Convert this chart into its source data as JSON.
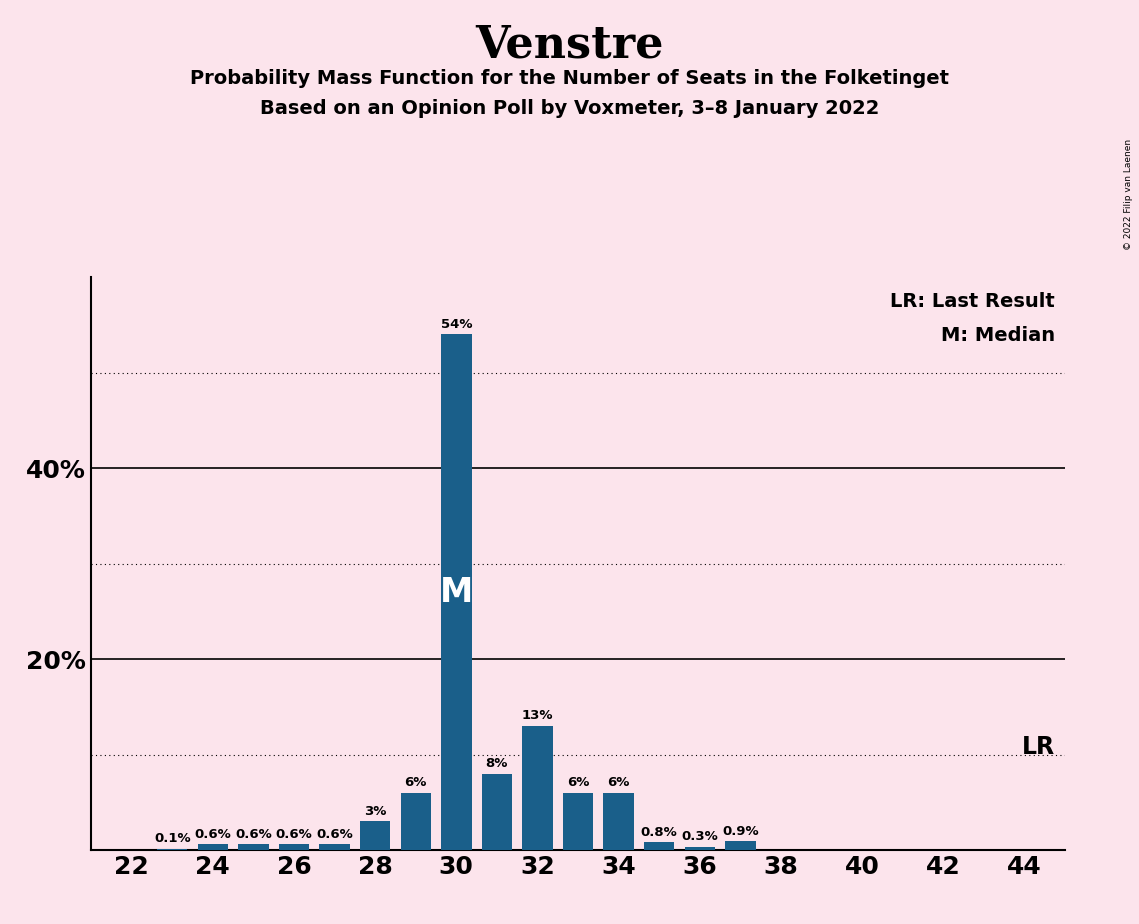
{
  "title": "Venstre",
  "subtitle1": "Probability Mass Function for the Number of Seats in the Folketinget",
  "subtitle2": "Based on an Opinion Poll by Voxmeter, 3–8 January 2022",
  "copyright_text": "© 2022 Filip van Laenen",
  "legend_lr": "LR: Last Result",
  "legend_m": "M: Median",
  "lr_label": "LR",
  "median_label": "M",
  "background_color": "#fce4ec",
  "bar_color": "#1a5f8a",
  "seats": [
    22,
    23,
    24,
    25,
    26,
    27,
    28,
    29,
    30,
    31,
    32,
    33,
    34,
    35,
    36,
    37,
    38,
    39,
    40,
    41,
    42,
    43,
    44
  ],
  "probabilities": [
    0.0,
    0.001,
    0.006,
    0.006,
    0.006,
    0.006,
    0.03,
    0.06,
    0.54,
    0.08,
    0.13,
    0.06,
    0.06,
    0.008,
    0.003,
    0.009,
    0.0,
    0.0,
    0.0,
    0.0,
    0.0,
    0.0,
    0.0
  ],
  "bar_labels": [
    "0%",
    "0.1%",
    "0.6%",
    "0.6%",
    "0.6%",
    "0.6%",
    "3%",
    "6%",
    "54%",
    "8%",
    "13%",
    "6%",
    "6%",
    "0.8%",
    "0.3%",
    "0.9%",
    "0%",
    "0%",
    "0%",
    "0%",
    "0%",
    "0%",
    "0%"
  ],
  "median_seat": 30,
  "lr_seat": 35,
  "xlim": [
    21.0,
    45.0
  ],
  "ylim": [
    0.0,
    0.6
  ],
  "solid_gridlines": [
    0.2,
    0.4
  ],
  "dotted_gridlines": [
    0.1,
    0.3,
    0.5
  ],
  "ytick_labels": {
    "0.20": "20%",
    "0.40": "40%"
  },
  "xticks": [
    22,
    24,
    26,
    28,
    30,
    32,
    34,
    36,
    38,
    40,
    42,
    44
  ],
  "bar_width": 0.75
}
